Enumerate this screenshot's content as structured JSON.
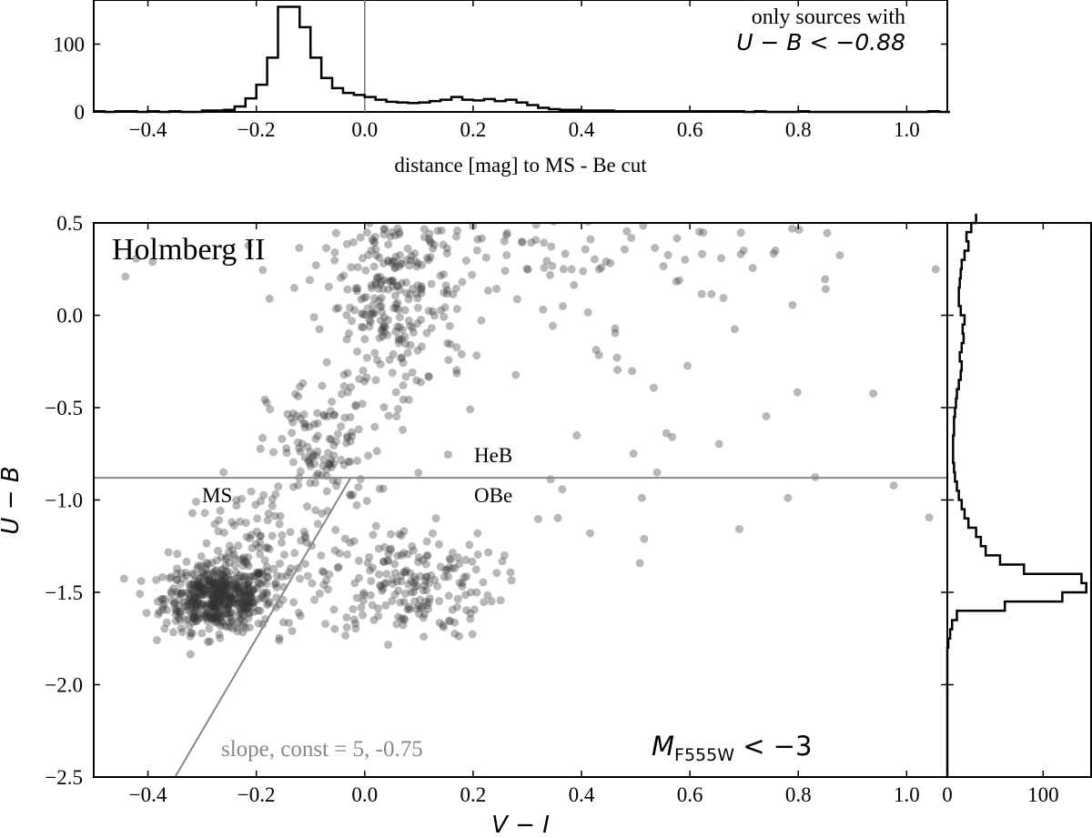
{
  "chart_data": [
    {
      "id": "top-histogram",
      "type": "histogram",
      "xlabel": "distance [mag] to MS - Be cut",
      "ylabel": "",
      "xlim": [
        -0.5,
        1.075
      ],
      "ylim": [
        0,
        165
      ],
      "xticks": [
        -0.4,
        -0.2,
        0.0,
        0.2,
        0.4,
        0.6,
        0.8,
        1.0
      ],
      "xtick_labels": [
        "−0.4",
        "−0.2",
        "0.0",
        "0.2",
        "0.4",
        "0.6",
        "0.8",
        "1.0"
      ],
      "yticks": [
        0,
        100
      ],
      "ytick_labels": [
        "0",
        "100"
      ],
      "vline_x": 0.0,
      "annotation_line1": "only sources with",
      "annotation_line2": "U − B < −0.88",
      "bin_width": 0.02,
      "bin_start": -0.5,
      "counts": [
        1,
        0,
        1,
        1,
        0,
        1,
        0,
        1,
        0,
        0,
        2,
        2,
        3,
        8,
        20,
        40,
        80,
        155,
        155,
        125,
        80,
        50,
        35,
        28,
        25,
        22,
        18,
        15,
        14,
        13,
        14,
        16,
        18,
        22,
        18,
        17,
        19,
        16,
        18,
        14,
        10,
        6,
        4,
        3,
        3,
        2,
        2,
        2,
        1,
        1,
        1,
        1,
        1,
        1,
        1,
        1,
        1,
        1,
        1,
        1,
        0,
        1,
        0,
        0,
        0,
        1,
        0,
        0,
        0,
        0,
        0,
        0,
        0,
        0,
        0,
        0,
        0,
        1,
        0
      ]
    },
    {
      "id": "main-scatter",
      "type": "scatter",
      "title": "Holmberg II",
      "xlabel": "V − I",
      "ylabel": "U − B",
      "xlim": [
        -0.5,
        1.075
      ],
      "ylim": [
        -2.5,
        0.5
      ],
      "xticks": [
        -0.4,
        -0.2,
        0.0,
        0.2,
        0.4,
        0.6,
        0.8,
        1.0
      ],
      "xtick_labels": [
        "−0.4",
        "−0.2",
        "0.0",
        "0.2",
        "0.4",
        "0.6",
        "0.8",
        "1.0"
      ],
      "yticks": [
        -2.5,
        -2.0,
        -1.5,
        -1.0,
        -0.5,
        0.0,
        0.5
      ],
      "ytick_labels": [
        "−2.5",
        "−2.0",
        "−1.5",
        "−1.0",
        "−0.5",
        "0.0",
        "0.5"
      ],
      "hline_y": -0.88,
      "cut_line": {
        "slope": 5,
        "const": -0.75
      },
      "labels": {
        "ms": "MS",
        "heb": "HeB",
        "obe": "OBe",
        "slope_text": "slope, const = 5, -0.75",
        "mag_cut": "M",
        "mag_cut_sub": "F555W",
        "mag_cut_rest": " < −3"
      },
      "point_color": "#333333",
      "point_alpha": 0.35,
      "clusters": [
        {
          "name": "ms-clump",
          "cx": -0.27,
          "cy": -1.53,
          "sx": 0.05,
          "sy": 0.09,
          "n": 520
        },
        {
          "name": "ms-tail",
          "cx": -0.2,
          "cy": -1.3,
          "sx": 0.07,
          "sy": 0.2,
          "n": 110
        },
        {
          "name": "obe",
          "cx": 0.08,
          "cy": -1.45,
          "sx": 0.08,
          "sy": 0.15,
          "n": 200
        },
        {
          "name": "heb-lower",
          "cx": -0.08,
          "cy": -0.75,
          "sx": 0.05,
          "sy": 0.2,
          "n": 120
        },
        {
          "name": "heb-upper",
          "cx": 0.05,
          "cy": 0.05,
          "sx": 0.06,
          "sy": 0.25,
          "n": 240
        },
        {
          "name": "red-top",
          "cx": 0.35,
          "cy": 0.3,
          "sx": 0.3,
          "sy": 0.15,
          "n": 120
        },
        {
          "name": "sparse",
          "cx": 0.5,
          "cy": -0.7,
          "sx": 0.3,
          "sy": 0.55,
          "n": 45
        }
      ]
    },
    {
      "id": "right-histogram",
      "type": "histogram-horizontal",
      "xlabel": "",
      "xlim": [
        0,
        150
      ],
      "ylim": [
        -2.5,
        0.5
      ],
      "xticks": [
        0,
        100
      ],
      "xtick_labels": [
        "0",
        "100"
      ],
      "bin_width": 0.05,
      "bin_start": -2.5,
      "counts": [
        0,
        0,
        0,
        0,
        0,
        0,
        0,
        0,
        0,
        0,
        0,
        0,
        0,
        0,
        1,
        3,
        5,
        10,
        60,
        120,
        145,
        140,
        80,
        55,
        40,
        35,
        30,
        22,
        18,
        15,
        12,
        10,
        8,
        7,
        6,
        6,
        6,
        7,
        7,
        8,
        9,
        10,
        12,
        14,
        15,
        13,
        15,
        17,
        16,
        18,
        14,
        12,
        12,
        13,
        14,
        15,
        18,
        22,
        20,
        25,
        30
      ]
    }
  ]
}
